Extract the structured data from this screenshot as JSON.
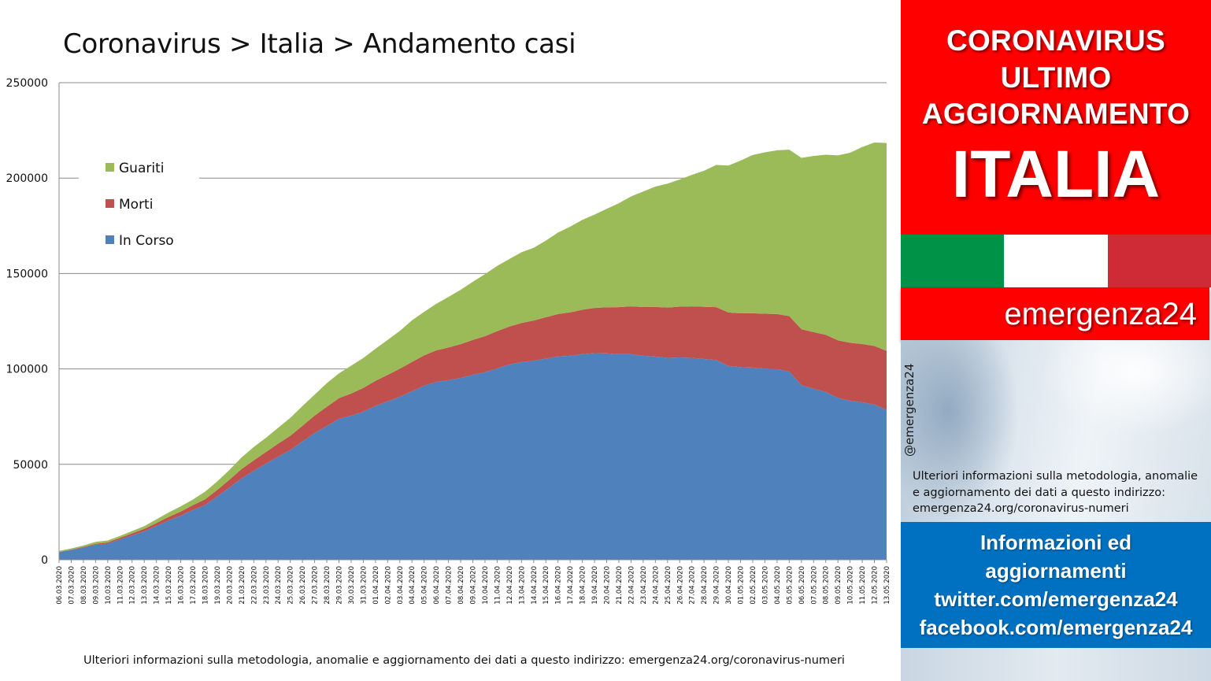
{
  "chart_title": "Coronavirus > Italia > Andamento casi",
  "footer_note": "Ulteriori informazioni sulla metodologia, anomalie e aggiornamento dei dati a questo indirizzo: emergenza24.org/coronavirus-numeri",
  "sidebar": {
    "headline": [
      "CORONAVIRUS",
      "ULTIMO",
      "AGGIORNAMENTO"
    ],
    "country": "ITALIA",
    "brand": "emergenza24",
    "handle": "@emergenza24",
    "note": "Ulteriori informazioni sulla metodologia, anomalie e aggiornamento dei dati a questo indirizzo: emergenza24.org/coronavirus-numeri",
    "info_lines": [
      "Informazioni ed",
      "aggiornamenti",
      "twitter.com/emergenza24",
      "facebook.com/emergenza24"
    ],
    "flag_colors": [
      "#009246",
      "#ffffff",
      "#ce2b37"
    ]
  },
  "chart_data": {
    "type": "area",
    "stacked": true,
    "title": "Coronavirus > Italia > Andamento casi",
    "ylim": [
      0,
      250000
    ],
    "yticks": [
      0,
      50000,
      100000,
      150000,
      200000,
      250000
    ],
    "grid": true,
    "legend": "top-left",
    "x": [
      "06.03.2020",
      "07.03.2020",
      "08.03.2020",
      "09.03.2020",
      "10.03.2020",
      "11.03.2020",
      "12.03.2020",
      "13.03.2020",
      "14.03.2020",
      "15.03.2020",
      "16.03.2020",
      "17.03.2020",
      "18.03.2020",
      "19.03.2020",
      "20.03.2020",
      "21.03.2020",
      "22.03.2020",
      "23.03.2020",
      "24.03.2020",
      "25.03.2020",
      "26.03.2020",
      "27.03.2020",
      "28.03.2020",
      "29.03.2020",
      "30.03.2020",
      "31.03.2020",
      "01.04.2020",
      "02.04.2020",
      "03.04.2020",
      "04.04.2020",
      "05.04.2020",
      "06.04.2020",
      "07.04.2020",
      "08.04.2020",
      "09.04.2020",
      "10.04.2020",
      "11.04.2020",
      "12.04.2020",
      "13.04.2020",
      "14.04.2020",
      "15.04.2020",
      "16.04.2020",
      "17.04.2020",
      "18.04.2020",
      "19.04.2020",
      "20.04.2020",
      "21.04.2020",
      "22.04.2020",
      "23.04.2020",
      "24.04.2020",
      "25.04.2020",
      "26.04.2020",
      "27.04.2020",
      "28.04.2020",
      "29.04.2020",
      "30.04.2020",
      "01.05.2020",
      "02.05.2020",
      "03.05.2020",
      "04.05.2020",
      "05.05.2020",
      "06.05.2020",
      "07.05.2020",
      "08.05.2020",
      "09.05.2020",
      "10.05.2020",
      "11.05.2020",
      "12.05.2020",
      "13.05.2020"
    ],
    "series": [
      {
        "name": "In Corso",
        "color": "#4f81bd",
        "values": [
          3900,
          5100,
          6400,
          7900,
          8500,
          10600,
          12800,
          14900,
          17800,
          20600,
          23100,
          26100,
          28700,
          33200,
          37900,
          42700,
          46600,
          50400,
          54000,
          57500,
          62000,
          66400,
          70100,
          73900,
          75500,
          77600,
          80600,
          83000,
          85400,
          88300,
          91200,
          93200,
          94100,
          95300,
          96900,
          98300,
          100300,
          102300,
          103600,
          104300,
          105400,
          106600,
          106900,
          107800,
          108300,
          108200,
          107700,
          107700,
          106900,
          106500,
          105800,
          106000,
          105800,
          105200,
          104700,
          101600,
          100900,
          100700,
          100200,
          99900,
          98600,
          91500,
          89600,
          87900,
          84800,
          83300,
          82500,
          81300,
          78500
        ]
      },
      {
        "name": "Morti",
        "color": "#c0504d",
        "values": [
          200,
          230,
          370,
          460,
          630,
          830,
          1020,
          1270,
          1440,
          1810,
          2160,
          2500,
          2980,
          3400,
          4030,
          4830,
          5480,
          6080,
          6820,
          7500,
          8170,
          9130,
          10020,
          10780,
          11590,
          12430,
          13160,
          13920,
          14680,
          15360,
          15890,
          16520,
          17130,
          17670,
          18280,
          18850,
          19470,
          19900,
          20470,
          21070,
          21650,
          22170,
          22750,
          23230,
          23660,
          24110,
          24650,
          25090,
          25550,
          25970,
          26380,
          26650,
          26980,
          27360,
          27680,
          27970,
          28240,
          28480,
          28710,
          28880,
          29080,
          29320,
          29680,
          29960,
          30200,
          30400,
          30560,
          30740,
          30910
        ]
      },
      {
        "name": "Guariti",
        "color": "#9bbb59",
        "values": [
          520,
          620,
          720,
          1040,
          1000,
          1050,
          1260,
          1440,
          1970,
          2340,
          2750,
          2940,
          4030,
          4440,
          5130,
          6080,
          7020,
          7430,
          8330,
          9360,
          10360,
          11000,
          12380,
          13000,
          14600,
          15700,
          16800,
          18300,
          19800,
          21800,
          22800,
          24400,
          26500,
          28500,
          30500,
          32500,
          34200,
          35400,
          37100,
          38100,
          40200,
          42700,
          44900,
          47100,
          48900,
          51600,
          54500,
          57600,
          60500,
          63100,
          64900,
          66600,
          68900,
          71300,
          74500,
          77000,
          80000,
          82900,
          84600,
          85800,
          87200,
          89800,
          92300,
          94400,
          96900,
          99600,
          103200,
          106600,
          109000
        ]
      }
    ]
  }
}
